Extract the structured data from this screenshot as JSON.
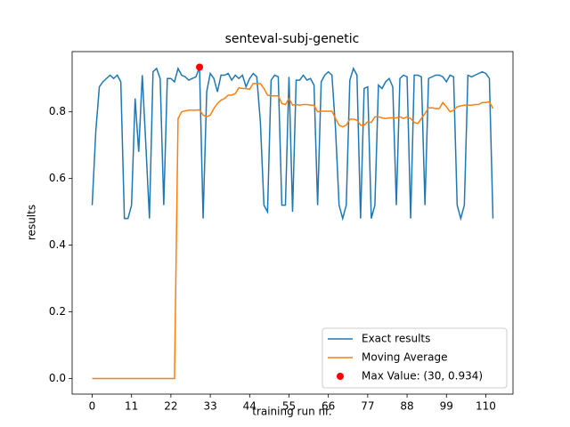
{
  "chart_data": {
    "type": "line",
    "title": "senteval-subj-genetic",
    "x_label": "training run nr.",
    "y_label": "results",
    "x": [
      0,
      1,
      2,
      3,
      4,
      5,
      6,
      7,
      8,
      9,
      10,
      11,
      12,
      13,
      14,
      15,
      16,
      17,
      18,
      19,
      20,
      21,
      22,
      23,
      24,
      25,
      26,
      27,
      28,
      29,
      30,
      31,
      32,
      33,
      34,
      35,
      36,
      37,
      38,
      39,
      40,
      41,
      42,
      43,
      44,
      45,
      46,
      47,
      48,
      49,
      50,
      51,
      52,
      53,
      54,
      55,
      56,
      57,
      58,
      59,
      60,
      61,
      62,
      63,
      64,
      65,
      66,
      67,
      68,
      69,
      70,
      71,
      72,
      73,
      74,
      75,
      76,
      77,
      78,
      79,
      80,
      81,
      82,
      83,
      84,
      85,
      86,
      87,
      88,
      89,
      90,
      91,
      92,
      93,
      94,
      95,
      96,
      97,
      98,
      99,
      100,
      101,
      102,
      103,
      104,
      105,
      106,
      107,
      108,
      109,
      110,
      111,
      112
    ],
    "series": [
      {
        "name": "Exact results",
        "color": "#1f77b4",
        "values": [
          0.52,
          0.74,
          0.875,
          0.89,
          0.9,
          0.91,
          0.9,
          0.91,
          0.89,
          0.48,
          0.48,
          0.52,
          0.84,
          0.68,
          0.91,
          0.7,
          0.48,
          0.92,
          0.93,
          0.9,
          0.52,
          0.9,
          0.9,
          0.89,
          0.93,
          0.91,
          0.905,
          0.895,
          0.9,
          0.905,
          0.934,
          0.48,
          0.86,
          0.915,
          0.9,
          0.86,
          0.91,
          0.91,
          0.915,
          0.895,
          0.91,
          0.9,
          0.91,
          0.875,
          0.9,
          0.915,
          0.905,
          0.77,
          0.52,
          0.5,
          0.895,
          0.91,
          0.905,
          0.52,
          0.52,
          0.905,
          0.5,
          0.895,
          0.895,
          0.91,
          0.895,
          0.9,
          0.88,
          0.52,
          0.89,
          0.91,
          0.92,
          0.91,
          0.75,
          0.52,
          0.48,
          0.52,
          0.895,
          0.93,
          0.91,
          0.48,
          0.87,
          0.875,
          0.48,
          0.52,
          0.88,
          0.87,
          0.89,
          0.9,
          0.875,
          0.52,
          0.9,
          0.91,
          0.905,
          0.48,
          0.91,
          0.91,
          0.905,
          0.52,
          0.9,
          0.905,
          0.91,
          0.91,
          0.905,
          0.89,
          0.91,
          0.905,
          0.52,
          0.48,
          0.52,
          0.91,
          0.905,
          0.91,
          0.915,
          0.92,
          0.915,
          0.9,
          0.48
        ]
      },
      {
        "name": "Moving Average",
        "color": "#ff7f0e",
        "values": [
          0,
          0,
          0,
          0,
          0,
          0,
          0,
          0,
          0,
          0,
          0,
          0,
          0,
          0,
          0,
          0,
          0,
          0,
          0,
          0,
          0,
          0,
          0,
          0,
          0.78,
          0.8,
          0.803,
          0.805,
          0.805,
          0.805,
          0.806,
          0.79,
          0.785,
          0.79,
          0.81,
          0.825,
          0.835,
          0.84,
          0.85,
          0.85,
          0.855,
          0.872,
          0.87,
          0.87,
          0.868,
          0.885,
          0.885,
          0.885,
          0.87,
          0.85,
          0.848,
          0.848,
          0.848,
          0.825,
          0.822,
          0.84,
          0.82,
          0.822,
          0.82,
          0.822,
          0.822,
          0.82,
          0.82,
          0.8,
          0.802,
          0.802,
          0.802,
          0.802,
          0.78,
          0.76,
          0.755,
          0.76,
          0.778,
          0.778,
          0.775,
          0.76,
          0.76,
          0.77,
          0.768,
          0.785,
          0.785,
          0.782,
          0.78,
          0.782,
          0.782,
          0.782,
          0.785,
          0.78,
          0.785,
          0.78,
          0.768,
          0.765,
          0.78,
          0.795,
          0.812,
          0.812,
          0.81,
          0.81,
          0.828,
          0.815,
          0.8,
          0.805,
          0.815,
          0.818,
          0.82,
          0.82,
          0.82,
          0.822,
          0.822,
          0.828,
          0.828,
          0.83,
          0.81
        ]
      }
    ],
    "max_point": {
      "name": "Max Value: (30, 0.934)",
      "color": "#ff0000",
      "x": 30,
      "value": 0.934
    },
    "xlim": [
      -5.6,
      117.6
    ],
    "ylim": [
      -0.0467,
      0.9807
    ],
    "xticks": [
      0,
      11,
      22,
      33,
      44,
      55,
      66,
      77,
      88,
      99,
      110
    ],
    "yticks": [
      {
        "value": 0,
        "label": "0.0"
      },
      {
        "value": 0.2,
        "label": "0.2"
      },
      {
        "value": 0.4,
        "label": "0.4"
      },
      {
        "value": 0.6,
        "label": "0.6"
      },
      {
        "value": 0.8,
        "label": "0.8"
      }
    ],
    "legend": "lower right"
  }
}
